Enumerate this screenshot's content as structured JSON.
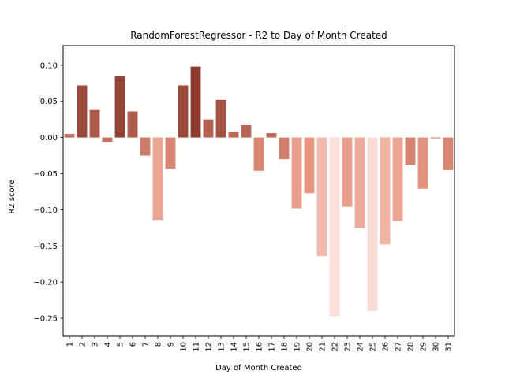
{
  "chart_data": {
    "type": "bar",
    "title": "RandomForestRegressor - R2 to Day of Month Created",
    "xlabel": "Day of Month Created",
    "ylabel": "R2 score",
    "categories": [
      "1",
      "2",
      "3",
      "4",
      "5",
      "6",
      "7",
      "8",
      "9",
      "10",
      "11",
      "12",
      "13",
      "14",
      "15",
      "16",
      "17",
      "18",
      "19",
      "20",
      "21",
      "22",
      "23",
      "24",
      "25",
      "26",
      "27",
      "28",
      "29",
      "30",
      "31"
    ],
    "values": [
      0.005,
      0.072,
      0.038,
      -0.006,
      0.085,
      0.036,
      -0.025,
      -0.114,
      -0.043,
      0.072,
      0.098,
      0.025,
      0.052,
      0.008,
      0.017,
      -0.046,
      0.006,
      -0.03,
      -0.098,
      -0.077,
      -0.164,
      -0.247,
      -0.096,
      -0.125,
      -0.24,
      -0.148,
      -0.115,
      -0.038,
      -0.071,
      -0.001,
      -0.045
    ],
    "ylim": [
      -0.275,
      0.127
    ],
    "yticks": [
      -0.25,
      -0.2,
      -0.15,
      -0.1,
      -0.05,
      0.0,
      0.05,
      0.1
    ],
    "ytick_labels": [
      "−0.25",
      "−0.20",
      "−0.15",
      "−0.10",
      "−0.05",
      "0.00",
      "0.05",
      "0.10"
    ],
    "grid": false,
    "colors": {
      "low": "#fcdfd8",
      "mid": "#e8957f",
      "high": "#8e3a2d"
    }
  }
}
